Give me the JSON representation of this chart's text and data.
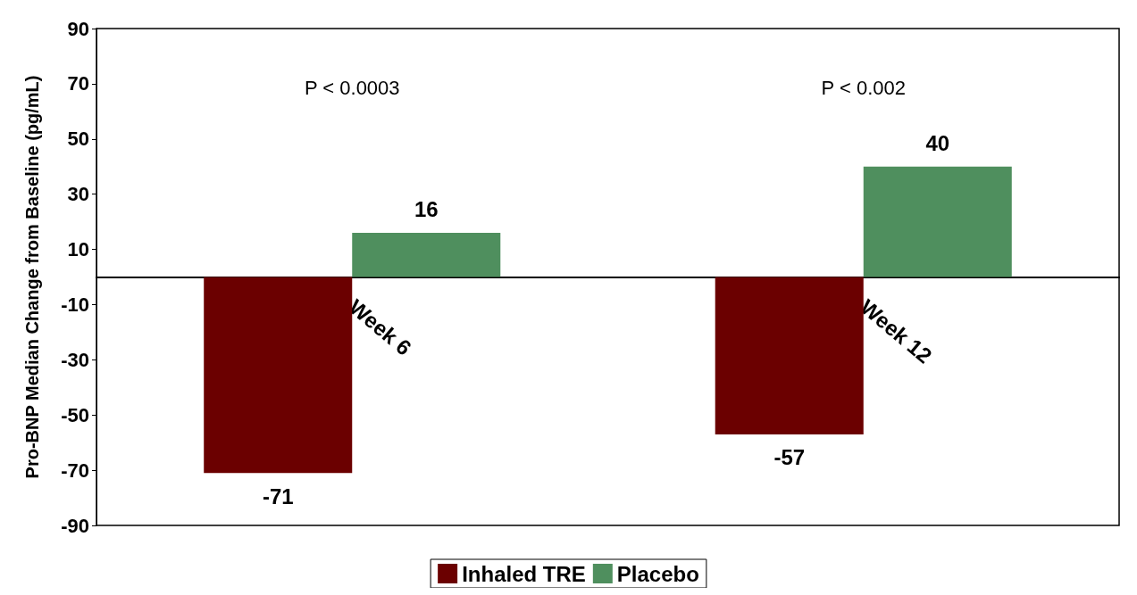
{
  "chart_data": {
    "type": "bar",
    "ylabel": "Pro-BNP Median Change from Baseline (pg/mL)",
    "categories": [
      "Week 6",
      "Week 12"
    ],
    "series": [
      {
        "name": "Inhaled TRE",
        "color": "#6b0000",
        "values": [
          -71,
          -57
        ]
      },
      {
        "name": "Placebo",
        "color": "#4f8f5e",
        "values": [
          16,
          40
        ]
      }
    ],
    "ylim": [
      -90,
      90
    ],
    "yticks": [
      -90,
      -70,
      -50,
      -30,
      -10,
      10,
      30,
      50,
      70,
      90
    ],
    "data_labels": true,
    "grid": false,
    "legend": "bottom",
    "annotations": [
      "P < 0.0003",
      "P < 0.002"
    ]
  }
}
